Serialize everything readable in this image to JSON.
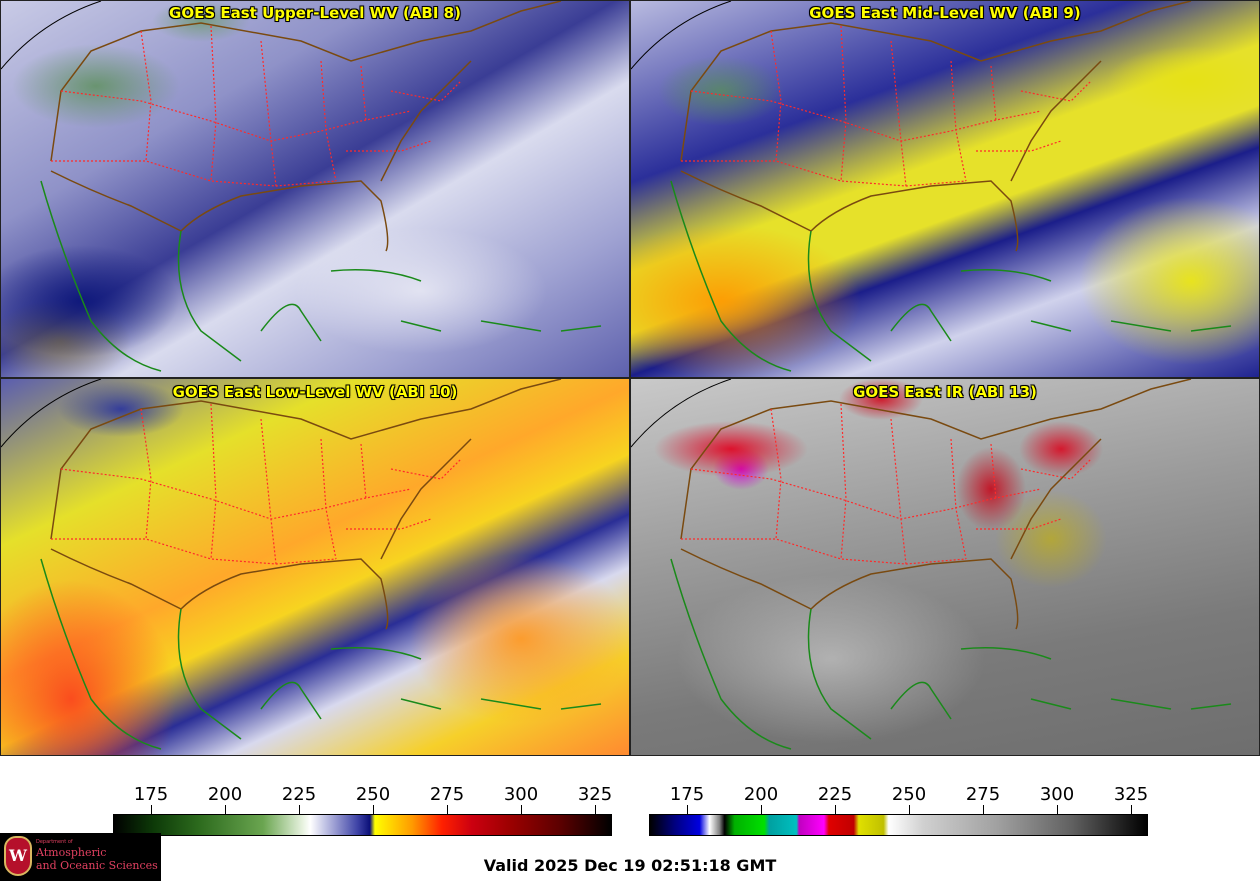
{
  "panels": [
    {
      "title": "GOES East Upper-Level WV (ABI 8)"
    },
    {
      "title": "GOES East Mid-Level WV (ABI 9)"
    },
    {
      "title": "GOES East Low-Level WV (ABI 10)"
    },
    {
      "title": "GOES East IR (ABI 13)"
    }
  ],
  "colorbar_wv": {
    "ticks": [
      "175",
      "200",
      "225",
      "250",
      "275",
      "300",
      "325"
    ]
  },
  "colorbar_ir": {
    "ticks": [
      "175",
      "200",
      "225",
      "250",
      "275",
      "300",
      "325"
    ]
  },
  "logo": {
    "dept": "Department of",
    "line1": "Atmospheric",
    "line2": "and Oceanic Sciences",
    "seal_letter": "W"
  },
  "valid_time": "Valid 2025 Dec 19 02:51:18 GMT",
  "colors": {
    "title_text": "#ffff00",
    "state_lines": "#ff2a2a",
    "coast_lines": "#1a8a1a",
    "border_lines": "#7a4a10"
  }
}
